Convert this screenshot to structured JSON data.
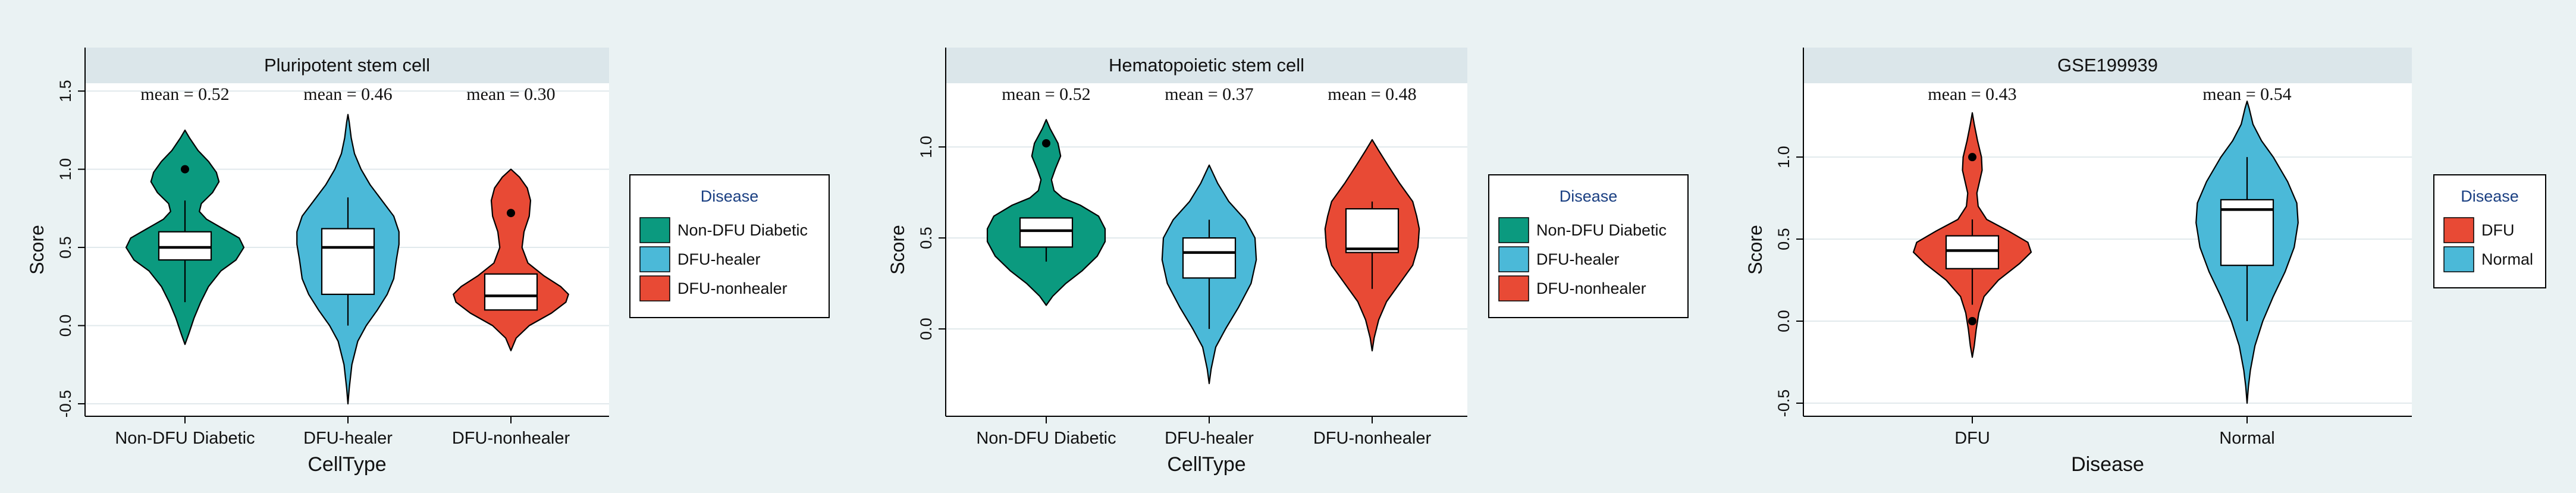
{
  "colors": {
    "background": "#eaf2f3",
    "strip": "#dbe6ea",
    "teal": "#0b9a7f",
    "blue": "#4bb9d8",
    "red": "#e84a35",
    "grid": "#e1e9ec",
    "legend_title": "#1a3f82"
  },
  "chart_data": [
    {
      "type": "violin",
      "title": "Pluripotent stem cell",
      "xlabel": "CellType",
      "ylabel": "Score",
      "ylim": [
        -0.58,
        1.55
      ],
      "yticks": [
        -0.5,
        0.0,
        0.5,
        1.0,
        1.5
      ],
      "ytick_labels": [
        "-0.5",
        "0.0",
        "0.5",
        "1.0",
        "1.5"
      ],
      "legend": {
        "title": "Disease",
        "placement": "right",
        "entries": [
          {
            "label": "Non-DFU Diabetic",
            "color": "#0b9a7f"
          },
          {
            "label": "DFU-healer",
            "color": "#4bb9d8"
          },
          {
            "label": "DFU-nonhealer",
            "color": "#e84a35"
          }
        ]
      },
      "groups": [
        {
          "name": "Non-DFU Diabetic",
          "color": "#0b9a7f",
          "mean_label": "mean = 0.52",
          "box": {
            "q1": 0.42,
            "median": 0.5,
            "q3": 0.6,
            "whisker_low": 0.15,
            "whisker_high": 0.8
          },
          "outliers": [
            1.0
          ],
          "density": [
            [
              -0.12,
              0
            ],
            [
              -0.05,
              0.06
            ],
            [
              0.05,
              0.14
            ],
            [
              0.15,
              0.24
            ],
            [
              0.25,
              0.36
            ],
            [
              0.35,
              0.55
            ],
            [
              0.42,
              0.78
            ],
            [
              0.5,
              0.9
            ],
            [
              0.56,
              0.83
            ],
            [
              0.62,
              0.58
            ],
            [
              0.68,
              0.33
            ],
            [
              0.73,
              0.22
            ],
            [
              0.78,
              0.25
            ],
            [
              0.85,
              0.42
            ],
            [
              0.92,
              0.52
            ],
            [
              0.98,
              0.48
            ],
            [
              1.05,
              0.36
            ],
            [
              1.12,
              0.2
            ],
            [
              1.2,
              0.07
            ],
            [
              1.25,
              0
            ]
          ]
        },
        {
          "name": "DFU-healer",
          "color": "#4bb9d8",
          "mean_label": "mean = 0.46",
          "box": {
            "q1": 0.2,
            "median": 0.5,
            "q3": 0.62,
            "whisker_low": 0.0,
            "whisker_high": 0.82
          },
          "outliers": [],
          "density": [
            [
              -0.5,
              0
            ],
            [
              -0.4,
              0.02
            ],
            [
              -0.25,
              0.06
            ],
            [
              -0.1,
              0.15
            ],
            [
              0.0,
              0.28
            ],
            [
              0.1,
              0.45
            ],
            [
              0.2,
              0.6
            ],
            [
              0.3,
              0.7
            ],
            [
              0.42,
              0.74
            ],
            [
              0.52,
              0.78
            ],
            [
              0.6,
              0.78
            ],
            [
              0.7,
              0.7
            ],
            [
              0.8,
              0.52
            ],
            [
              0.9,
              0.34
            ],
            [
              1.0,
              0.2
            ],
            [
              1.1,
              0.1
            ],
            [
              1.2,
              0.05
            ],
            [
              1.3,
              0.02
            ],
            [
              1.35,
              0
            ]
          ]
        },
        {
          "name": "DFU-nonhealer",
          "color": "#e84a35",
          "mean_label": "mean = 0.30",
          "box": {
            "q1": 0.1,
            "median": 0.19,
            "q3": 0.33,
            "whisker_low": 0.1,
            "whisker_high": 0.33
          },
          "outliers": [
            0.72
          ],
          "density": [
            [
              -0.16,
              0
            ],
            [
              -0.08,
              0.08
            ],
            [
              0.0,
              0.28
            ],
            [
              0.08,
              0.62
            ],
            [
              0.15,
              0.84
            ],
            [
              0.2,
              0.88
            ],
            [
              0.25,
              0.76
            ],
            [
              0.32,
              0.5
            ],
            [
              0.4,
              0.26
            ],
            [
              0.5,
              0.17
            ],
            [
              0.6,
              0.2
            ],
            [
              0.7,
              0.28
            ],
            [
              0.8,
              0.3
            ],
            [
              0.88,
              0.25
            ],
            [
              0.95,
              0.13
            ],
            [
              1.0,
              0
            ]
          ]
        }
      ]
    },
    {
      "type": "violin",
      "title": "Hematopoietic stem cell",
      "xlabel": "CellType",
      "ylabel": "Score",
      "ylim": [
        -0.48,
        1.35
      ],
      "yticks": [
        0.0,
        0.5,
        1.0
      ],
      "ytick_labels": [
        "0.0",
        "0.5",
        "1.0"
      ],
      "legend": {
        "title": "Disease",
        "placement": "right",
        "entries": [
          {
            "label": "Non-DFU Diabetic",
            "color": "#0b9a7f"
          },
          {
            "label": "DFU-healer",
            "color": "#4bb9d8"
          },
          {
            "label": "DFU-nonhealer",
            "color": "#e84a35"
          }
        ]
      },
      "groups": [
        {
          "name": "Non-DFU Diabetic",
          "color": "#0b9a7f",
          "mean_label": "mean = 0.52",
          "box": {
            "q1": 0.45,
            "median": 0.54,
            "q3": 0.61,
            "whisker_low": 0.37,
            "whisker_high": 0.61
          },
          "outliers": [
            1.02
          ],
          "density": [
            [
              0.13,
              0
            ],
            [
              0.18,
              0.1
            ],
            [
              0.25,
              0.3
            ],
            [
              0.32,
              0.55
            ],
            [
              0.4,
              0.78
            ],
            [
              0.48,
              0.9
            ],
            [
              0.55,
              0.9
            ],
            [
              0.62,
              0.8
            ],
            [
              0.68,
              0.52
            ],
            [
              0.72,
              0.25
            ],
            [
              0.76,
              0.12
            ],
            [
              0.82,
              0.08
            ],
            [
              0.88,
              0.14
            ],
            [
              0.95,
              0.22
            ],
            [
              1.02,
              0.18
            ],
            [
              1.1,
              0.06
            ],
            [
              1.15,
              0
            ]
          ]
        },
        {
          "name": "DFU-healer",
          "color": "#4bb9d8",
          "mean_label": "mean = 0.37",
          "box": {
            "q1": 0.28,
            "median": 0.42,
            "q3": 0.5,
            "whisker_low": 0.0,
            "whisker_high": 0.6
          },
          "outliers": [],
          "density": [
            [
              -0.3,
              0
            ],
            [
              -0.22,
              0.03
            ],
            [
              -0.1,
              0.1
            ],
            [
              0.0,
              0.25
            ],
            [
              0.12,
              0.45
            ],
            [
              0.25,
              0.64
            ],
            [
              0.38,
              0.72
            ],
            [
              0.5,
              0.7
            ],
            [
              0.6,
              0.55
            ],
            [
              0.7,
              0.3
            ],
            [
              0.8,
              0.13
            ],
            [
              0.9,
              0
            ]
          ]
        },
        {
          "name": "DFU-nonhealer",
          "color": "#e84a35",
          "mean_label": "mean = 0.48",
          "box": {
            "q1": 0.42,
            "median": 0.44,
            "q3": 0.66,
            "whisker_low": 0.22,
            "whisker_high": 0.7
          },
          "outliers": [],
          "density": [
            [
              -0.12,
              0
            ],
            [
              -0.05,
              0.03
            ],
            [
              0.05,
              0.1
            ],
            [
              0.15,
              0.22
            ],
            [
              0.25,
              0.42
            ],
            [
              0.35,
              0.62
            ],
            [
              0.45,
              0.7
            ],
            [
              0.55,
              0.72
            ],
            [
              0.62,
              0.68
            ],
            [
              0.7,
              0.62
            ],
            [
              0.8,
              0.42
            ],
            [
              0.9,
              0.24
            ],
            [
              0.98,
              0.1
            ],
            [
              1.04,
              0
            ]
          ]
        }
      ]
    },
    {
      "type": "violin",
      "title": "GSE199939",
      "xlabel": "Disease",
      "ylabel": "Score",
      "ylim": [
        -0.58,
        1.45
      ],
      "yticks": [
        -0.5,
        0.0,
        0.5,
        1.0
      ],
      "ytick_labels": [
        "-0.5",
        "0.0",
        "0.5",
        "1.0"
      ],
      "legend": {
        "title": "Disease",
        "placement": "right",
        "entries": [
          {
            "label": "DFU",
            "color": "#e84a35"
          },
          {
            "label": "Normal",
            "color": "#4bb9d8"
          }
        ]
      },
      "groups": [
        {
          "name": "DFU",
          "color": "#e84a35",
          "mean_label": "mean = 0.43",
          "box": {
            "q1": 0.32,
            "median": 0.43,
            "q3": 0.52,
            "whisker_low": 0.1,
            "whisker_high": 0.62
          },
          "outliers": [
            1.0,
            0.0
          ],
          "density": [
            [
              -0.22,
              0
            ],
            [
              -0.15,
              0.03
            ],
            [
              -0.05,
              0.06
            ],
            [
              0.05,
              0.1
            ],
            [
              0.15,
              0.18
            ],
            [
              0.25,
              0.4
            ],
            [
              0.35,
              0.72
            ],
            [
              0.42,
              0.9
            ],
            [
              0.48,
              0.85
            ],
            [
              0.55,
              0.55
            ],
            [
              0.62,
              0.22
            ],
            [
              0.7,
              0.09
            ],
            [
              0.78,
              0.07
            ],
            [
              0.85,
              0.11
            ],
            [
              0.92,
              0.15
            ],
            [
              1.0,
              0.14
            ],
            [
              1.1,
              0.08
            ],
            [
              1.2,
              0.03
            ],
            [
              1.27,
              0
            ]
          ]
        },
        {
          "name": "Normal",
          "color": "#4bb9d8",
          "mean_label": "mean = 0.54",
          "box": {
            "q1": 0.34,
            "median": 0.68,
            "q3": 0.74,
            "whisker_low": 0.0,
            "whisker_high": 1.0
          },
          "outliers": [],
          "density": [
            [
              -0.5,
              0
            ],
            [
              -0.4,
              0.02
            ],
            [
              -0.3,
              0.05
            ],
            [
              -0.15,
              0.12
            ],
            [
              0.0,
              0.24
            ],
            [
              0.15,
              0.4
            ],
            [
              0.3,
              0.58
            ],
            [
              0.45,
              0.72
            ],
            [
              0.6,
              0.78
            ],
            [
              0.72,
              0.76
            ],
            [
              0.85,
              0.62
            ],
            [
              1.0,
              0.4
            ],
            [
              1.1,
              0.22
            ],
            [
              1.2,
              0.09
            ],
            [
              1.3,
              0.03
            ],
            [
              1.34,
              0
            ]
          ]
        }
      ]
    }
  ]
}
